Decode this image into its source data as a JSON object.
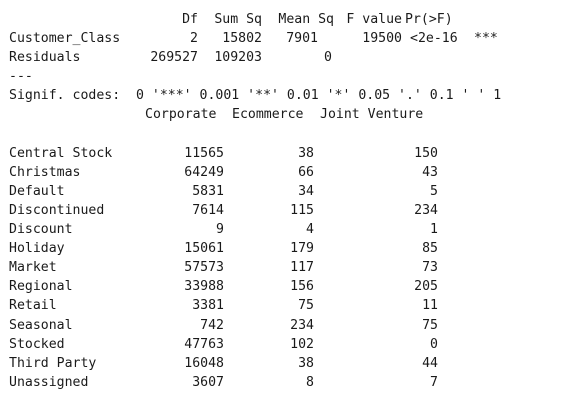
{
  "anova": {
    "header": {
      "df": "Df",
      "sum_sq": "Sum Sq",
      "mean_sq": "Mean Sq",
      "f_value": "F value",
      "pr": "Pr(>F)"
    },
    "rows": [
      {
        "term": "Customer_Class",
        "df": "2",
        "sum_sq": "15802",
        "mean_sq": "7901",
        "f_value": "19500",
        "pr": "<2e-16",
        "stars": "***"
      },
      {
        "term": "Residuals",
        "df": "269527",
        "sum_sq": "109203",
        "mean_sq": "0",
        "f_value": "",
        "pr": "",
        "stars": ""
      }
    ],
    "separator": "---",
    "signif_codes": "Signif. codes:  0 '***' 0.001 '**' 0.01 '*' 0.05 '.' 0.1 ' ' 1"
  },
  "crosstab": {
    "columns": [
      "Corporate",
      "Ecommerce",
      "Joint Venture"
    ],
    "rows": [
      {
        "label": "Central Stock",
        "values": [
          "11565",
          "38",
          "150"
        ]
      },
      {
        "label": "Christmas",
        "values": [
          "64249",
          "66",
          "43"
        ]
      },
      {
        "label": "Default",
        "values": [
          "5831",
          "34",
          "5"
        ]
      },
      {
        "label": "Discontinued",
        "values": [
          "7614",
          "115",
          "234"
        ]
      },
      {
        "label": "Discount",
        "values": [
          "9",
          "4",
          "1"
        ]
      },
      {
        "label": "Holiday",
        "values": [
          "15061",
          "179",
          "85"
        ]
      },
      {
        "label": "Market",
        "values": [
          "57573",
          "117",
          "73"
        ]
      },
      {
        "label": "Regional",
        "values": [
          "33988",
          "156",
          "205"
        ]
      },
      {
        "label": "Retail",
        "values": [
          "3381",
          "75",
          "11"
        ]
      },
      {
        "label": "Seasonal",
        "values": [
          "742",
          "234",
          "75"
        ]
      },
      {
        "label": "Stocked",
        "values": [
          "47763",
          "102",
          "0"
        ]
      },
      {
        "label": "Third Party",
        "values": [
          "16048",
          "38",
          "44"
        ]
      },
      {
        "label": "Unassigned",
        "values": [
          "3607",
          "8",
          "7"
        ]
      }
    ]
  }
}
